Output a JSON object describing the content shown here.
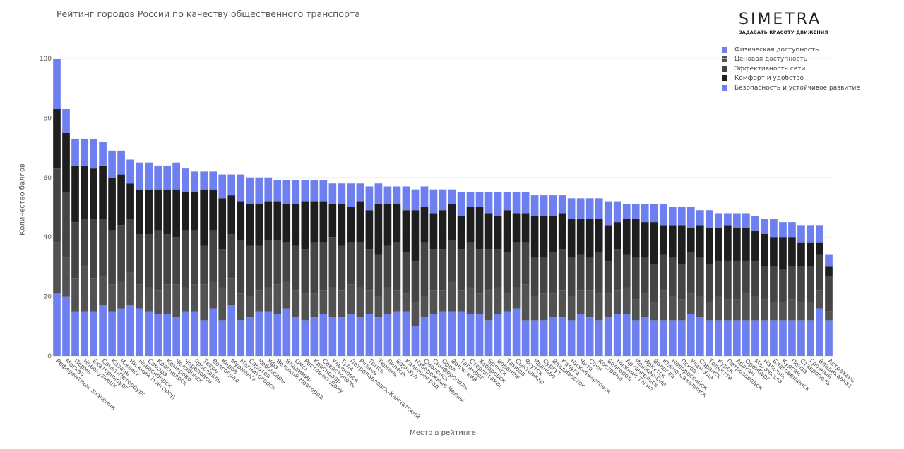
{
  "title": "Рейтинг городов России по качеству общественного транспорта",
  "logo": {
    "text": "SIMETRA",
    "tagline": "ЗАДАВАТЬ КРАСОТУ ДВИЖЕНИЯ"
  },
  "chart_data": {
    "type": "bar",
    "stacked": true,
    "title": "Рейтинг городов России по качеству общественного транспорта",
    "xlabel": "Место в рейтинге",
    "ylabel": "Количество баллов",
    "ylim": [
      0,
      100
    ],
    "yticks": [
      0,
      20,
      40,
      60,
      80,
      100
    ],
    "grid": true,
    "legend_position": "top-right",
    "categories": [
      "Референтные значения",
      "Москва",
      "Пермь",
      "Новокузнецк",
      "Екатеринбург",
      "Санкт-Петербург",
      "Казань",
      "Ижевск",
      "Нижний Новгород",
      "Новосибирск",
      "Самара",
      "Красноярск",
      "Кемерово",
      "Челябинск",
      "Череповец",
      "Ярославль",
      "Тверь",
      "Волгоград",
      "Киров",
      "Мурманск",
      "Магнитогорск",
      "Саратов",
      "Чебоксары",
      "Уфа",
      "Великий Новгород",
      "Владимир",
      "Омск",
      "Ростов-на-Дону",
      "Краснодар",
      "Севастополь",
      "Ульяновск",
      "Тула",
      "Петропавловск-Камчатский",
      "Рязань",
      "Томск",
      "Тюмень",
      "Липецк",
      "Барнаул",
      "Калининград",
      "Набережные Челны",
      "Смоленск",
      "Симферополь",
      "Орел",
      "Волжский",
      "Таганрог",
      "Стерлитамак",
      "Хабаровск",
      "Брянск",
      "Воронеж",
      "Тамбов",
      "Сыктывкар",
      "Якутск",
      "Иваново",
      "Сургут",
      "Владивосток",
      "Калуга",
      "Нижневартовск",
      "Чита",
      "Сочи",
      "Кострома",
      "Белгород",
      "Нижний Тагил",
      "Архангельск",
      "Йошкар-Ола",
      "Иркутск",
      "Вологда",
      "Южно-Сахалинск",
      "Новороссийск",
      "Псков",
      "Улан-Удэ",
      "Саранск",
      "Тольятти",
      "Курск",
      "Петрозаводск",
      "Абакан",
      "Оренбург",
      "Махачкала",
      "Нальчик",
      "Благовещенск",
      "Курган",
      "Пенза",
      "Ставрополь",
      "Грозный",
      "Владикавказ",
      "Астрахань"
    ],
    "series": [
      {
        "name": "Физическая доступность",
        "color": "#6e7ff0"
      },
      {
        "name": "Ценовая доступность",
        "color": "#525252"
      },
      {
        "name": "Эффективность сети",
        "color": "#444444"
      },
      {
        "name": "Комфорт и удобство",
        "color": "#1e1e1e"
      },
      {
        "name": "Безопасность и устойчивое развитие",
        "color": "#6e7ff0"
      }
    ],
    "stack_order_bottom_to_top": [
      0,
      1,
      2,
      3,
      4
    ],
    "stacks": [
      [
        21,
        17,
        25,
        20,
        17
      ],
      [
        20,
        13,
        22,
        20,
        8
      ],
      [
        15,
        11,
        19,
        19,
        9
      ],
      [
        15,
        15,
        16,
        18,
        9
      ],
      [
        15,
        11,
        20,
        17,
        10
      ],
      [
        17,
        10,
        19,
        18,
        8
      ],
      [
        15,
        9,
        18,
        18,
        9
      ],
      [
        16,
        9,
        19,
        17,
        8
      ],
      [
        17,
        11,
        18,
        12,
        8
      ],
      [
        16,
        8,
        17,
        15,
        9
      ],
      [
        15,
        8,
        18,
        15,
        9
      ],
      [
        14,
        8,
        20,
        14,
        8
      ],
      [
        14,
        10,
        17,
        15,
        8
      ],
      [
        13,
        11,
        16,
        16,
        9
      ],
      [
        15,
        8,
        19,
        13,
        8
      ],
      [
        15,
        9,
        18,
        13,
        7
      ],
      [
        12,
        12,
        13,
        19,
        6
      ],
      [
        16,
        9,
        17,
        14,
        6
      ],
      [
        12,
        11,
        13,
        17,
        8
      ],
      [
        17,
        9,
        15,
        13,
        7
      ],
      [
        12,
        9,
        18,
        13,
        9
      ],
      [
        13,
        7,
        17,
        14,
        9
      ],
      [
        15,
        7,
        15,
        14,
        9
      ],
      [
        15,
        8,
        16,
        13,
        8
      ],
      [
        14,
        10,
        15,
        13,
        7
      ],
      [
        16,
        9,
        13,
        13,
        8
      ],
      [
        13,
        9,
        15,
        14,
        8
      ],
      [
        12,
        9,
        15,
        16,
        7
      ],
      [
        13,
        8,
        17,
        14,
        7
      ],
      [
        14,
        8,
        16,
        14,
        7
      ],
      [
        13,
        10,
        17,
        11,
        7
      ],
      [
        13,
        9,
        15,
        14,
        7
      ],
      [
        14,
        10,
        14,
        12,
        8
      ],
      [
        13,
        10,
        15,
        14,
        6
      ],
      [
        14,
        8,
        14,
        13,
        8
      ],
      [
        13,
        7,
        14,
        17,
        7
      ],
      [
        14,
        9,
        14,
        14,
        6
      ],
      [
        15,
        7,
        16,
        13,
        6
      ],
      [
        15,
        6,
        14,
        14,
        8
      ],
      [
        10,
        8,
        14,
        17,
        7
      ],
      [
        13,
        7,
        18,
        12,
        7
      ],
      [
        14,
        8,
        14,
        12,
        8
      ],
      [
        15,
        7,
        14,
        13,
        7
      ],
      [
        15,
        10,
        14,
        12,
        5
      ],
      [
        15,
        7,
        14,
        11,
        8
      ],
      [
        14,
        9,
        15,
        12,
        5
      ],
      [
        14,
        7,
        15,
        14,
        5
      ],
      [
        12,
        10,
        14,
        12,
        7
      ],
      [
        14,
        9,
        13,
        11,
        8
      ],
      [
        15,
        6,
        14,
        14,
        6
      ],
      [
        16,
        7,
        15,
        10,
        7
      ],
      [
        12,
        12,
        14,
        10,
        7
      ],
      [
        12,
        8,
        13,
        14,
        7
      ],
      [
        12,
        9,
        12,
        14,
        7
      ],
      [
        13,
        8,
        14,
        12,
        7
      ],
      [
        13,
        9,
        14,
        12,
        6
      ],
      [
        12,
        8,
        13,
        13,
        7
      ],
      [
        14,
        8,
        12,
        12,
        7
      ],
      [
        13,
        9,
        11,
        13,
        7
      ],
      [
        12,
        9,
        14,
        11,
        7
      ],
      [
        13,
        8,
        11,
        12,
        8
      ],
      [
        14,
        8,
        14,
        9,
        7
      ],
      [
        14,
        9,
        11,
        12,
        5
      ],
      [
        12,
        7,
        14,
        13,
        5
      ],
      [
        13,
        8,
        12,
        12,
        6
      ],
      [
        12,
        6,
        13,
        14,
        6
      ],
      [
        12,
        10,
        12,
        10,
        7
      ],
      [
        12,
        8,
        13,
        11,
        6
      ],
      [
        12,
        7,
        12,
        13,
        6
      ],
      [
        14,
        7,
        14,
        8,
        7
      ],
      [
        13,
        7,
        13,
        11,
        5
      ],
      [
        12,
        6,
        13,
        12,
        6
      ],
      [
        12,
        8,
        12,
        11,
        5
      ],
      [
        12,
        7,
        13,
        12,
        4
      ],
      [
        12,
        7,
        13,
        11,
        5
      ],
      [
        12,
        9,
        11,
        11,
        5
      ],
      [
        12,
        8,
        12,
        10,
        5
      ],
      [
        12,
        7,
        11,
        11,
        5
      ],
      [
        12,
        6,
        12,
        10,
        6
      ],
      [
        12,
        6,
        11,
        11,
        5
      ],
      [
        12,
        7,
        11,
        10,
        5
      ],
      [
        12,
        6,
        12,
        8,
        6
      ],
      [
        12,
        6,
        12,
        8,
        6
      ],
      [
        16,
        6,
        12,
        4,
        6
      ],
      [
        12,
        3,
        12,
        3,
        4
      ]
    ]
  }
}
